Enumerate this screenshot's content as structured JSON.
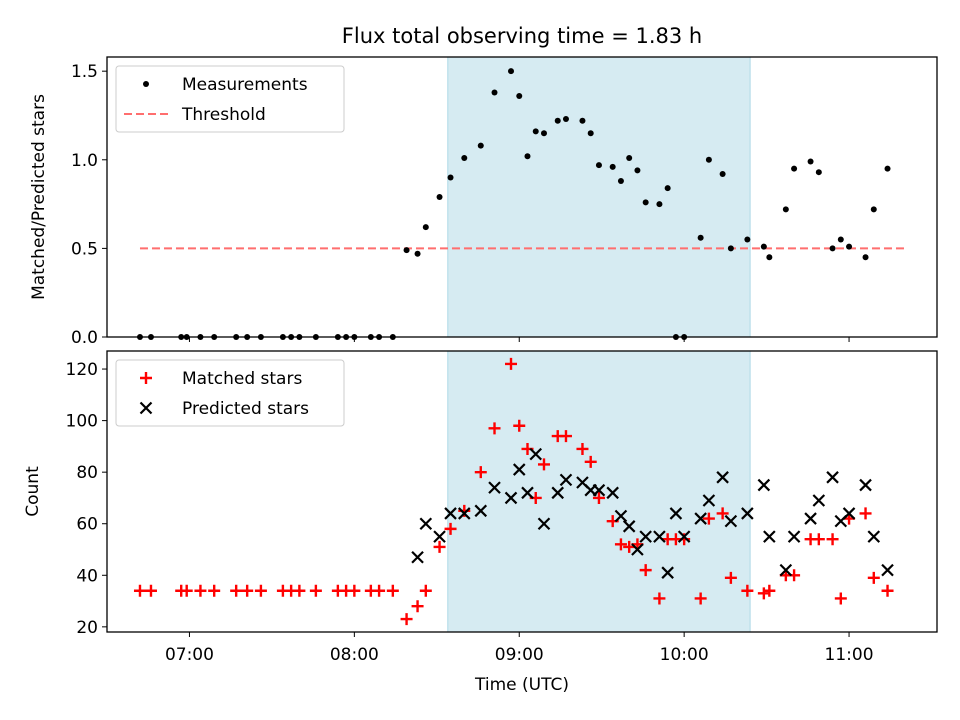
{
  "title": "Flux total observing time = 1.83 h",
  "colors": {
    "shade": "#add8e6",
    "measurements": "#000000",
    "threshold": "#ff6e6e",
    "matched": "#ff0000",
    "predicted": "#000000"
  },
  "chart_data": [
    {
      "type": "scatter",
      "ylabel": "Matched/Predicted stars",
      "xlabel": "",
      "xlim": [
        "06:30",
        "11:32"
      ],
      "ylim": [
        0,
        1.58
      ],
      "yticks": [
        "0.0",
        "0.5",
        "1.0",
        "1.5"
      ],
      "legend_position": "top-left",
      "shaded_span": [
        "08:34",
        "10:24"
      ],
      "threshold": {
        "name": "Threshold",
        "value": 0.5,
        "x_range": [
          "06:42",
          "11:20"
        ]
      },
      "series": [
        {
          "name": "Measurements",
          "x": [
            "06:42",
            "06:46",
            "06:57",
            "06:59",
            "07:04",
            "07:09",
            "07:17",
            "07:21",
            "07:26",
            "07:34",
            "07:37",
            "07:40",
            "07:46",
            "07:54",
            "07:57",
            "08:00",
            "08:06",
            "08:09",
            "08:14",
            "08:19",
            "08:23",
            "08:26",
            "08:31",
            "08:35",
            "08:40",
            "08:46",
            "08:51",
            "08:57",
            "09:00",
            "09:03",
            "09:06",
            "09:09",
            "09:14",
            "09:17",
            "09:23",
            "09:26",
            "09:29",
            "09:34",
            "09:37",
            "09:40",
            "09:43",
            "09:46",
            "09:51",
            "09:54",
            "09:57",
            "10:00",
            "10:06",
            "10:09",
            "10:14",
            "10:17",
            "10:23",
            "10:29",
            "10:31",
            "10:37",
            "10:40",
            "10:46",
            "10:49",
            "10:54",
            "10:57",
            "11:00",
            "11:06",
            "11:09",
            "11:14"
          ],
          "y": [
            0,
            0,
            0,
            0,
            0,
            0,
            0,
            0,
            0,
            0,
            0,
            0,
            0,
            0,
            0,
            0,
            0,
            0,
            0,
            0.49,
            0.47,
            0.62,
            0.79,
            0.9,
            1.01,
            1.08,
            1.38,
            1.5,
            1.36,
            1.02,
            1.16,
            1.15,
            1.22,
            1.23,
            1.22,
            1.15,
            0.97,
            0.96,
            0.88,
            1.01,
            0.94,
            0.76,
            0.75,
            0.84,
            0,
            0,
            0.56,
            1.0,
            0.92,
            0.5,
            0.55,
            0.51,
            0.45,
            0.72,
            0.95,
            0.99,
            0.93,
            0.5,
            0.55,
            0.51,
            0.45,
            0.72,
            0.95
          ]
        }
      ]
    },
    {
      "type": "scatter",
      "ylabel": "Count",
      "xlabel": "Time (UTC)",
      "xlim": [
        "06:30",
        "11:32"
      ],
      "ylim": [
        18,
        127
      ],
      "yticks": [
        "20",
        "40",
        "60",
        "80",
        "100",
        "120"
      ],
      "xticks": [
        "07:00",
        "08:00",
        "09:00",
        "10:00",
        "11:00"
      ],
      "legend_position": "top-left",
      "shaded_span": [
        "08:34",
        "10:24"
      ],
      "series": [
        {
          "name": "Matched stars",
          "x": [
            "06:42",
            "06:46",
            "06:57",
            "06:59",
            "07:04",
            "07:09",
            "07:17",
            "07:21",
            "07:26",
            "07:34",
            "07:37",
            "07:40",
            "07:46",
            "07:54",
            "07:57",
            "08:00",
            "08:06",
            "08:09",
            "08:14",
            "08:19",
            "08:23",
            "08:26",
            "08:31",
            "08:35",
            "08:40",
            "08:46",
            "08:51",
            "08:57",
            "09:00",
            "09:03",
            "09:06",
            "09:09",
            "09:14",
            "09:17",
            "09:23",
            "09:26",
            "09:29",
            "09:34",
            "09:37",
            "09:40",
            "09:43",
            "09:46",
            "09:51",
            "09:54",
            "09:57",
            "10:00",
            "10:06",
            "10:09",
            "10:14",
            "10:17",
            "10:23",
            "10:29",
            "10:31",
            "10:37",
            "10:40",
            "10:46",
            "10:49",
            "10:54",
            "10:57",
            "11:00",
            "11:06",
            "11:09",
            "11:14"
          ],
          "y": [
            34,
            34,
            34,
            34,
            34,
            34,
            34,
            34,
            34,
            34,
            34,
            34,
            34,
            34,
            34,
            34,
            34,
            34,
            34,
            23,
            28,
            34,
            51,
            58,
            65,
            80,
            97,
            122,
            98,
            89,
            70,
            83,
            94,
            94,
            89,
            84,
            70,
            61,
            52,
            51,
            52,
            42,
            31,
            54,
            54,
            54,
            31,
            62,
            64,
            39,
            34,
            33,
            34,
            40,
            40,
            54,
            54,
            54,
            31,
            62,
            64,
            39,
            34
          ]
        },
        {
          "name": "Predicted stars",
          "x": [
            "08:23",
            "08:26",
            "08:31",
            "08:35",
            "08:40",
            "08:46",
            "08:51",
            "08:57",
            "09:00",
            "09:03",
            "09:06",
            "09:09",
            "09:14",
            "09:17",
            "09:23",
            "09:26",
            "09:29",
            "09:34",
            "09:37",
            "09:40",
            "09:43",
            "09:46",
            "09:51",
            "09:54",
            "09:57",
            "10:00",
            "10:06",
            "10:09",
            "10:14",
            "10:17",
            "10:23",
            "10:29",
            "10:31",
            "10:37",
            "10:40",
            "10:46",
            "10:49",
            "10:54",
            "10:57",
            "11:00",
            "11:06",
            "11:09",
            "11:14"
          ],
          "y": [
            47,
            60,
            55,
            64,
            64,
            65,
            74,
            70,
            81,
            72,
            87,
            60,
            72,
            77,
            76,
            73,
            73,
            72,
            63,
            59,
            50,
            55,
            55,
            41,
            64,
            55,
            62,
            69,
            78,
            61,
            64,
            75,
            55,
            42,
            55,
            62,
            69,
            78,
            61,
            64,
            75,
            55,
            42
          ]
        }
      ]
    }
  ]
}
